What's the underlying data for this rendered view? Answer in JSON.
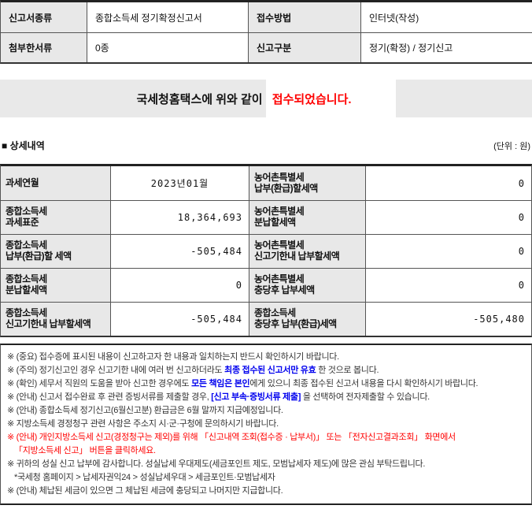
{
  "summary_table": {
    "row1": {
      "label1": "신고서종류",
      "value1": "종합소득세 정기확정신고서",
      "label2": "접수방법",
      "value2": "인터넷(작성)"
    },
    "row2": {
      "label1": "첨부한서류",
      "value1": "0종",
      "label2": "신고구분",
      "value2": "정기(확정) / 정기신고"
    }
  },
  "banner": {
    "prefix": "국세청홈택스에 위와 같이",
    "highlight": "접수되었습니다."
  },
  "detail": {
    "section_title": "■ 상세내역",
    "unit_label": "(단위 : 원)",
    "rows": [
      {
        "label": "과세연월",
        "value": "2023년01월",
        "label2": "농어촌특별세\n납부(환급)할세액",
        "value2": "0"
      },
      {
        "label": "종합소득세\n과세표준",
        "value": "18,364,693",
        "label2": "농어촌특별세\n분납할세액",
        "value2": "0"
      },
      {
        "label": "종합소득세\n납부(환급)할 세액",
        "value": "-505,484",
        "label2": "농어촌특별세\n신고기한내 납부할세액",
        "value2": "0"
      },
      {
        "label": "종합소득세\n분납할세액",
        "value": "0",
        "label2": "농어촌특별세\n충당후 납부세액",
        "value2": "0"
      },
      {
        "label": "종합소득세\n신고기한내 납부할세액",
        "value": "-505,484",
        "label2": "종합소득세\n충당후 납부(환급)세액",
        "value2": "-505,480"
      }
    ]
  },
  "notes": {
    "n0": {
      "text": "※ (중요) 접수증에 표시된 내용이 신고하고자 한 내용과 일치하는지 반드시 확인하시기 바랍니다."
    },
    "n1": {
      "pre": "※ (주의) 정기신고인 경우 신고기한 내에 여러 번 신고하더라도 ",
      "em": "최종 접수된 신고서만 유효",
      "post": " 한 것으로 봅니다."
    },
    "n2": {
      "pre": "※ (확인) 세무서 직원의 도움을 받아 신고한 경우에도 ",
      "em": "모든 책임은 본인",
      "post": "에게 있으니 최종 접수된 신고서 내용을 다시 확인하시기 바랍니다."
    },
    "n3": {
      "pre": "※ (안내) 신고서 접수완료 후 관련 증빙서류를 제출할 경우, ",
      "em": "[신고 부속·증빙서류 제출]",
      "post": " 을 선택하여 전자제출할 수 있습니다."
    },
    "n4": {
      "text": "※ (안내) 종합소득세 정기신고(6월신고분) 환급금은 6월 말까지 지급예정입니다."
    },
    "n5": {
      "text": "※ 지방소득세 경정청구 관련 사항은 주소지 시·군·구청에 문의하시기 바랍니다."
    },
    "n6": {
      "line1": "※ (안내) 개인지방소득세 신고(경정청구는 제외)를 위해 「신고내역 조회(접수증 · 납부서)」 또는 「전자신고결과조회」 화면에서",
      "line2": "「지방소득세 신고」 버튼을 클릭하세요."
    },
    "n7": {
      "line1": "※ 귀하의 성실 신고 납부에 감사합니다. 성실납세 우대제도(세금포인트 제도, 모범납세자 제도)에 많은 관심 부탁드립니다.",
      "line2": "*국세청 홈페이지 > 납세자권익24 > 성실납세우대 > 세금포인트·모범납세자"
    },
    "n8": {
      "text": "※ (안내) 체납된 세금이 있으면 그 체납된 세금에 충당되고 나머지만 지급합니다."
    }
  },
  "colors": {
    "accent_red": "#ff0000",
    "accent_blue": "#0000ee",
    "header_bg": "#e8e8e8"
  }
}
